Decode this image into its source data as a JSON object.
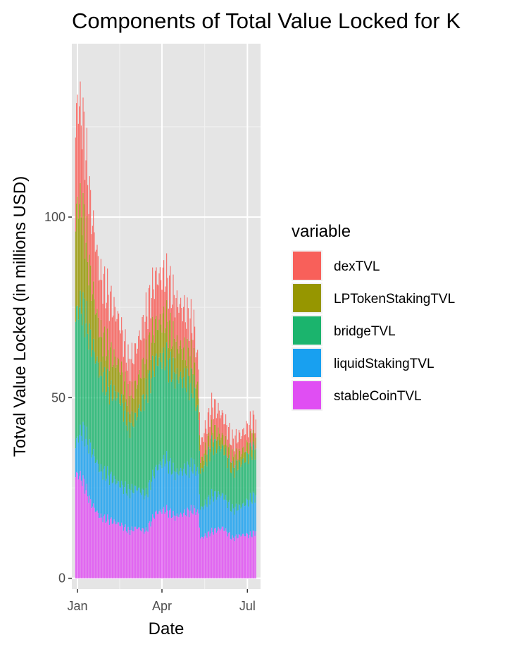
{
  "chart_data": {
    "type": "bar",
    "stacked": true,
    "title": "Components of Total Value Locked for K",
    "xlabel": "Date",
    "ylabel": "Totval Value Locked (in millions USD)",
    "ylim": [
      -3,
      148
    ],
    "y_ticks": [
      0,
      50,
      100
    ],
    "x_ticks": [
      "Jan",
      "Apr",
      "Jul"
    ],
    "x_tick_dates": [
      "2023-01-01",
      "2023-04-01",
      "2023-07-01"
    ],
    "x_range": [
      "2022-12-26",
      "2023-07-15"
    ],
    "bar_width_days": 0.75,
    "legend": {
      "title": "variable",
      "entries": [
        "dexTVL",
        "LPTokenStakingTVL",
        "bridgeTVL",
        "liquidStakingTVL",
        "stableCoinTVL"
      ],
      "placement": "right"
    },
    "grid": true,
    "background": "#e5e5e5",
    "series": [
      {
        "name": "stableCoinTVL",
        "color": "#E04EF3",
        "anchors": [
          [
            "2022-12-30",
            28
          ],
          [
            "2023-01-01",
            29
          ],
          [
            "2023-01-07",
            27
          ],
          [
            "2023-01-15",
            21
          ],
          [
            "2023-01-25",
            17
          ],
          [
            "2023-02-05",
            16
          ],
          [
            "2023-02-15",
            15
          ],
          [
            "2023-02-25",
            13
          ],
          [
            "2023-03-05",
            14
          ],
          [
            "2023-03-15",
            13
          ],
          [
            "2023-03-25",
            18
          ],
          [
            "2023-04-05",
            19
          ],
          [
            "2023-04-15",
            17
          ],
          [
            "2023-04-25",
            18
          ],
          [
            "2023-05-05",
            19
          ],
          [
            "2023-05-10",
            18
          ],
          [
            "2023-05-12",
            11
          ],
          [
            "2023-05-25",
            13
          ],
          [
            "2023-06-05",
            14
          ],
          [
            "2023-06-15",
            11
          ],
          [
            "2023-06-25",
            12
          ],
          [
            "2023-07-05",
            12
          ],
          [
            "2023-07-10",
            13
          ]
        ]
      },
      {
        "name": "liquidStakingTVL",
        "color": "#18A0F0",
        "anchors": [
          [
            "2022-12-30",
            8
          ],
          [
            "2023-01-01",
            10
          ],
          [
            "2023-01-07",
            14
          ],
          [
            "2023-01-15",
            15
          ],
          [
            "2023-01-25",
            13
          ],
          [
            "2023-02-05",
            12
          ],
          [
            "2023-02-15",
            11
          ],
          [
            "2023-02-25",
            11
          ],
          [
            "2023-03-05",
            11
          ],
          [
            "2023-03-15",
            10
          ],
          [
            "2023-03-25",
            12
          ],
          [
            "2023-04-05",
            14
          ],
          [
            "2023-04-15",
            12
          ],
          [
            "2023-04-25",
            12
          ],
          [
            "2023-05-05",
            12
          ],
          [
            "2023-05-10",
            11
          ],
          [
            "2023-05-12",
            8
          ],
          [
            "2023-05-25",
            10
          ],
          [
            "2023-06-05",
            9
          ],
          [
            "2023-06-15",
            8
          ],
          [
            "2023-06-25",
            8
          ],
          [
            "2023-07-05",
            10
          ],
          [
            "2023-07-10",
            10
          ]
        ]
      },
      {
        "name": "bridgeTVL",
        "color": "#1BB46D",
        "anchors": [
          [
            "2022-12-30",
            35
          ],
          [
            "2023-01-01",
            36
          ],
          [
            "2023-01-07",
            34
          ],
          [
            "2023-01-15",
            30
          ],
          [
            "2023-01-25",
            27
          ],
          [
            "2023-02-05",
            24
          ],
          [
            "2023-02-15",
            24
          ],
          [
            "2023-02-25",
            18
          ],
          [
            "2023-03-05",
            20
          ],
          [
            "2023-03-15",
            28
          ],
          [
            "2023-03-25",
            30
          ],
          [
            "2023-04-05",
            28
          ],
          [
            "2023-04-15",
            27
          ],
          [
            "2023-04-25",
            25
          ],
          [
            "2023-05-05",
            22
          ],
          [
            "2023-05-10",
            15
          ],
          [
            "2023-05-12",
            10
          ],
          [
            "2023-05-25",
            14
          ],
          [
            "2023-06-05",
            13
          ],
          [
            "2023-06-15",
            11
          ],
          [
            "2023-06-25",
            12
          ],
          [
            "2023-07-05",
            13
          ],
          [
            "2023-07-10",
            13
          ]
        ]
      },
      {
        "name": "LPTokenStakingTVL",
        "color": "#969600",
        "anchors": [
          [
            "2022-12-30",
            25
          ],
          [
            "2023-01-01",
            30
          ],
          [
            "2023-01-07",
            26
          ],
          [
            "2023-01-15",
            17
          ],
          [
            "2023-01-25",
            11
          ],
          [
            "2023-02-05",
            10
          ],
          [
            "2023-02-15",
            9
          ],
          [
            "2023-02-25",
            7
          ],
          [
            "2023-03-05",
            9
          ],
          [
            "2023-03-15",
            10
          ],
          [
            "2023-03-25",
            10
          ],
          [
            "2023-04-05",
            11
          ],
          [
            "2023-04-15",
            9
          ],
          [
            "2023-04-25",
            8
          ],
          [
            "2023-05-05",
            7
          ],
          [
            "2023-05-10",
            6
          ],
          [
            "2023-05-12",
            3
          ],
          [
            "2023-05-25",
            4
          ],
          [
            "2023-06-05",
            3
          ],
          [
            "2023-06-15",
            3
          ],
          [
            "2023-06-25",
            3
          ],
          [
            "2023-07-05",
            3
          ],
          [
            "2023-07-10",
            3
          ]
        ]
      },
      {
        "name": "dexTVL",
        "color": "#F8605A",
        "anchors": [
          [
            "2022-12-30",
            26
          ],
          [
            "2023-01-01",
            28
          ],
          [
            "2023-01-07",
            25
          ],
          [
            "2023-01-15",
            20
          ],
          [
            "2023-01-25",
            16
          ],
          [
            "2023-02-05",
            15
          ],
          [
            "2023-02-15",
            12
          ],
          [
            "2023-02-25",
            10
          ],
          [
            "2023-03-05",
            10
          ],
          [
            "2023-03-15",
            12
          ],
          [
            "2023-03-25",
            13
          ],
          [
            "2023-04-05",
            12
          ],
          [
            "2023-04-15",
            12
          ],
          [
            "2023-04-25",
            11
          ],
          [
            "2023-05-05",
            10
          ],
          [
            "2023-05-10",
            8
          ],
          [
            "2023-05-12",
            5
          ],
          [
            "2023-05-25",
            7
          ],
          [
            "2023-06-05",
            6
          ],
          [
            "2023-06-15",
            5
          ],
          [
            "2023-06-25",
            5
          ],
          [
            "2023-07-05",
            5
          ],
          [
            "2023-07-10",
            5
          ]
        ]
      }
    ]
  }
}
